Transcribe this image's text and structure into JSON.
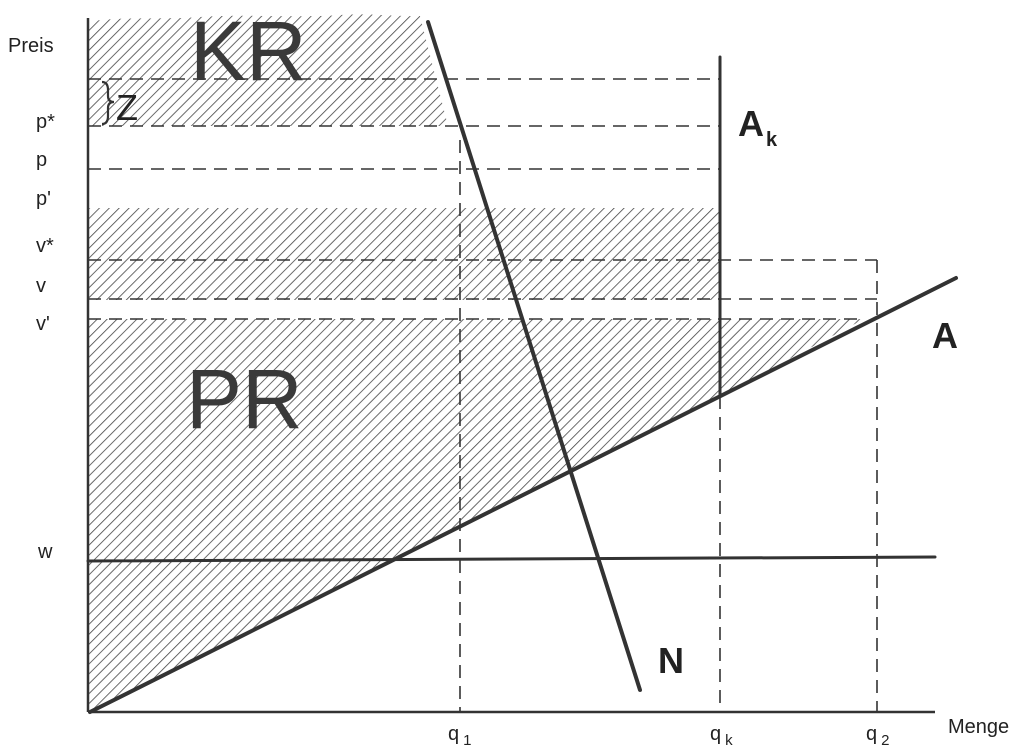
{
  "axes": {
    "y_label": "Preis",
    "x_label": "Menge"
  },
  "price_labels": {
    "p_star": "p*",
    "p": "p",
    "p_prime": "p'",
    "v_star": "v*",
    "v": "v",
    "v_prime": "v'",
    "w": "w"
  },
  "quantity_labels": {
    "q1_main": "q",
    "q1_sub": "1",
    "qk_main": "q",
    "qk_sub": "k",
    "q2_main": "q",
    "q2_sub": "2"
  },
  "curve_labels": {
    "supply": "A",
    "quota_main": "A",
    "quota_sub": "k",
    "demand": "N"
  },
  "region_labels": {
    "consumer_rent": "KR",
    "producer_rent": "PR",
    "z": "Z"
  }
}
